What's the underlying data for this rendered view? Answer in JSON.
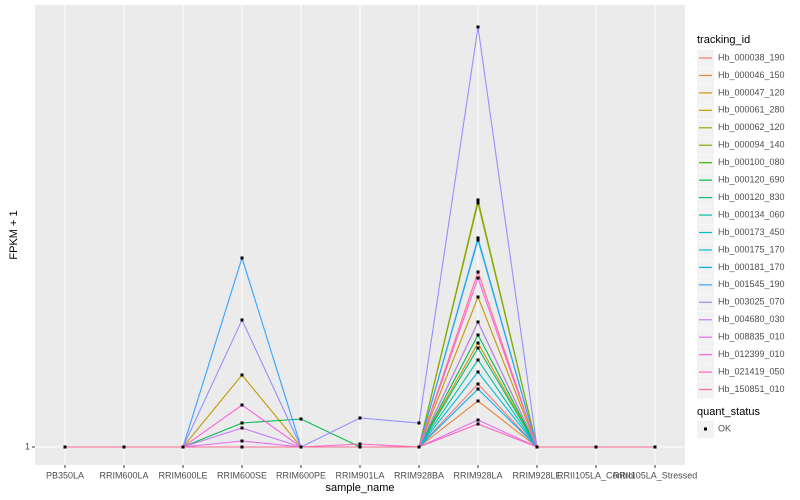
{
  "chart_data": {
    "type": "line",
    "x_label": "sample_name",
    "y_label": "FPKM + 1",
    "legend_title": "tracking_id",
    "categories": [
      "PB350LA",
      "RRIM600LA",
      "RRIM600LE",
      "RRIM600SE",
      "RRIM600PE",
      "RRIM901LA",
      "RRIM928BA",
      "RRIM928LA",
      "RRIM928LE",
      "RRII105LA_Control",
      "RRII105LA_Stressed"
    ],
    "ylim": [
      0.82,
      5.42
    ],
    "yticks": [
      1
    ],
    "grid": true,
    "series": [
      {
        "name": "Hb_000038_190",
        "color": "#F8766D",
        "values": [
          1,
          1,
          1,
          1,
          1,
          1,
          1,
          1.63,
          1,
          1,
          1
        ]
      },
      {
        "name": "Hb_000046_150",
        "color": "#EA8331",
        "values": [
          1,
          1,
          1,
          1,
          1,
          1,
          1,
          1.46,
          1,
          1,
          1
        ]
      },
      {
        "name": "Hb_000047_120",
        "color": "#D89000",
        "values": [
          1,
          1,
          1,
          1,
          1,
          1,
          1,
          2.04,
          1,
          1,
          1
        ]
      },
      {
        "name": "Hb_000061_280",
        "color": "#C09B00",
        "values": [
          1,
          1,
          1,
          1.72,
          1,
          1,
          1,
          2.5,
          1,
          1,
          1
        ]
      },
      {
        "name": "Hb_000062_120",
        "color": "#A3A500",
        "values": [
          1,
          1,
          1,
          1,
          1,
          1,
          1,
          3.47,
          1,
          1,
          1
        ]
      },
      {
        "name": "Hb_000094_140",
        "color": "#7CAE00",
        "values": [
          1,
          1,
          1,
          1,
          1,
          1,
          1,
          3.44,
          1,
          1,
          1
        ]
      },
      {
        "name": "Hb_000100_080",
        "color": "#39B600",
        "values": [
          1,
          1,
          1,
          1,
          1,
          1,
          1,
          2.25,
          1,
          1,
          1
        ]
      },
      {
        "name": "Hb_000120_690",
        "color": "#00BB4E",
        "values": [
          1,
          1,
          1,
          1.24,
          1.28,
          1,
          1,
          2.12,
          1,
          1,
          1
        ]
      },
      {
        "name": "Hb_000120_830",
        "color": "#00BF7D",
        "values": [
          1,
          1,
          1,
          1,
          1,
          1,
          1,
          1.99,
          1,
          1,
          1
        ]
      },
      {
        "name": "Hb_000134_060",
        "color": "#00C1A3",
        "values": [
          1,
          1,
          1,
          1,
          1,
          1,
          1,
          1.87,
          1,
          1,
          1
        ]
      },
      {
        "name": "Hb_000173_450",
        "color": "#00BFC4",
        "values": [
          1,
          1,
          1,
          1,
          1,
          1,
          1,
          3.07,
          1,
          1,
          1
        ]
      },
      {
        "name": "Hb_000175_170",
        "color": "#00BAE0",
        "values": [
          1,
          1,
          1,
          1,
          1,
          1,
          1,
          1.75,
          1,
          1,
          1
        ]
      },
      {
        "name": "Hb_000181_170",
        "color": "#00B0F6",
        "values": [
          1,
          1,
          1,
          1,
          1,
          1,
          1,
          1.58,
          1,
          1,
          1
        ]
      },
      {
        "name": "Hb_001545_190",
        "color": "#35A2FF",
        "values": [
          1,
          1,
          1,
          2.89,
          1,
          1,
          1,
          3.09,
          1,
          1,
          1
        ]
      },
      {
        "name": "Hb_003025_070",
        "color": "#9590FF",
        "values": [
          1,
          1,
          1,
          2.27,
          1,
          1.29,
          1.24,
          5.2,
          1,
          1,
          1
        ]
      },
      {
        "name": "Hb_004680_030",
        "color": "#C77CFF",
        "values": [
          1,
          1,
          1,
          1.19,
          1,
          1,
          1,
          2.25,
          1,
          1,
          1
        ]
      },
      {
        "name": "Hb_008835_010",
        "color": "#E76BF3",
        "values": [
          1,
          1,
          1,
          1.06,
          1,
          1,
          1,
          1.27,
          1,
          1,
          1
        ]
      },
      {
        "name": "Hb_012399_010",
        "color": "#FA62DB",
        "values": [
          1,
          1,
          1,
          1.42,
          1,
          1,
          1,
          2.69,
          1,
          1,
          1
        ]
      },
      {
        "name": "Hb_021419_050",
        "color": "#FF62BC",
        "values": [
          1,
          1,
          1,
          1,
          1,
          1.03,
          1,
          1.23,
          1,
          1,
          1
        ]
      },
      {
        "name": "Hb_150851_010",
        "color": "#FF6C91",
        "values": [
          1,
          1,
          1,
          1,
          1,
          1,
          1,
          2.75,
          1,
          1,
          1
        ]
      }
    ],
    "point_legend": {
      "title": "quant_status",
      "labels": [
        "OK"
      ],
      "color": "#000000"
    }
  }
}
